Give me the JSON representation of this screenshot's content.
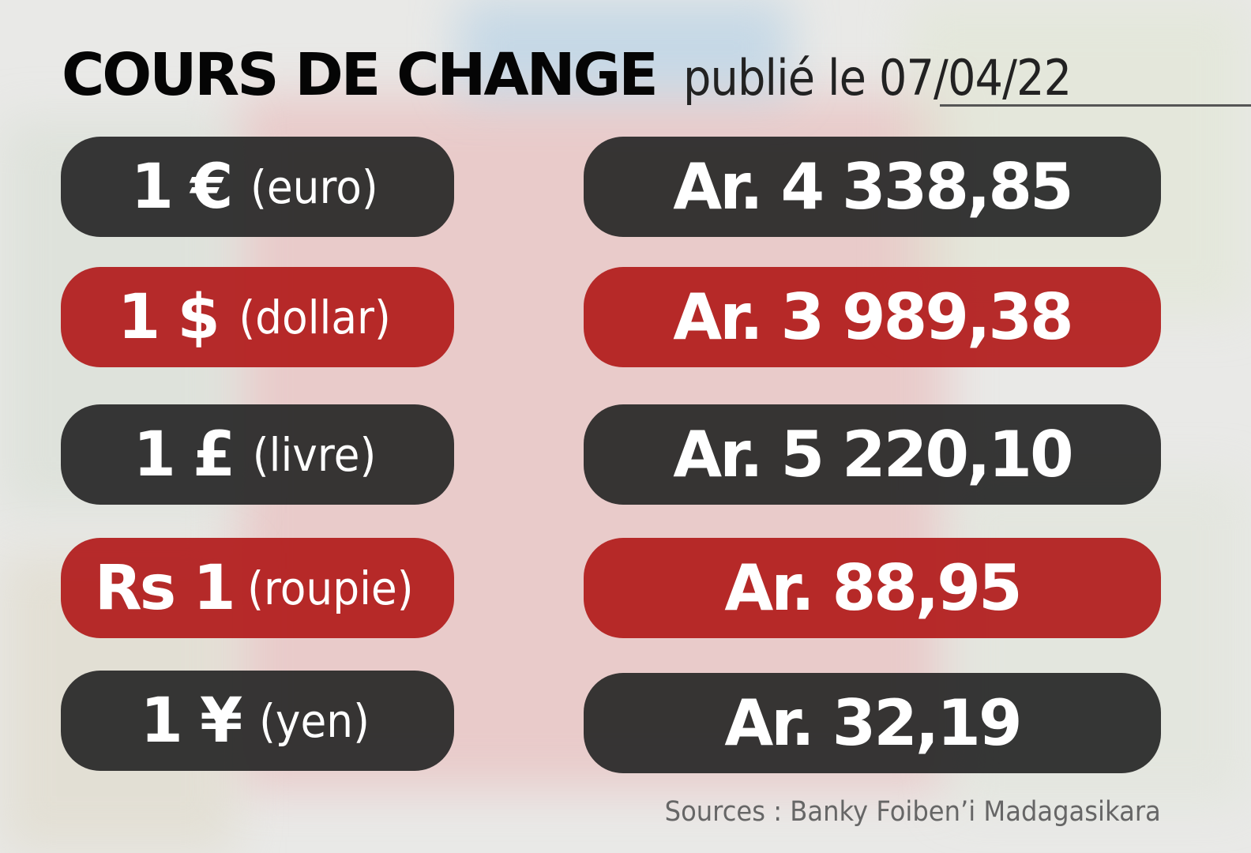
{
  "header": {
    "title": "COURS DE CHANGE",
    "subtitle": "publié le 07/04/22"
  },
  "colors": {
    "dark_pill": "#2b2b2b",
    "red_pill": "#b21c1c",
    "background": "#e9e9e7"
  },
  "rates": [
    {
      "currency": "1 €",
      "name": "(euro)",
      "value": "Ar. 4 338,85",
      "style": "dark"
    },
    {
      "currency": "1 $",
      "name": "(dollar)",
      "value": "Ar. 3 989,38",
      "style": "red"
    },
    {
      "currency": "1 £",
      "name": "(livre)",
      "value": "Ar. 5 220,10",
      "style": "dark"
    },
    {
      "currency": "Rs 1",
      "name": "(roupie)",
      "value": "Ar. 88,95",
      "style": "red"
    },
    {
      "currency": "1 ¥",
      "name": "(yen)",
      "value": "Ar. 32,19",
      "style": "dark"
    }
  ],
  "footer": {
    "source": "Sources : Banky Foiben’i Madagasikara"
  }
}
